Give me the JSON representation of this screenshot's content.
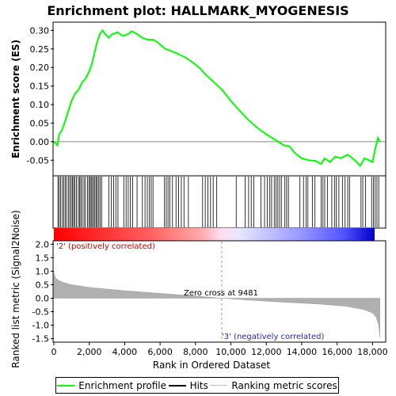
{
  "chart_data": {
    "title": "Enrichment plot: HALLMARK_MYOGENESIS",
    "type": "line",
    "x_label": "Rank in Ordered Dataset",
    "x_range": [
      0,
      18700
    ],
    "x_ticks": [
      "0",
      "2,000",
      "4,000",
      "6,000",
      "8,000",
      "10,000",
      "12,000",
      "14,000",
      "16,000",
      "18,000"
    ],
    "x_tick_values": [
      0,
      2000,
      4000,
      6000,
      8000,
      10000,
      12000,
      14000,
      16000,
      18000
    ],
    "enrichment": {
      "y_label": "Enrichment score (ES)",
      "y_range": [
        -0.09,
        0.32
      ],
      "y_ticks": [
        "0.30",
        "0.25",
        "0.20",
        "0.15",
        "0.10",
        "0.05",
        "0.00",
        "-0.05"
      ],
      "y_tick_values": [
        0.3,
        0.25,
        0.2,
        0.15,
        0.1,
        0.05,
        0.0,
        -0.05
      ],
      "series_name": "Enrichment profile",
      "color": "#00ff00",
      "points": [
        [
          0,
          0.0
        ],
        [
          200,
          -0.01
        ],
        [
          300,
          0.02
        ],
        [
          450,
          0.03
        ],
        [
          600,
          0.05
        ],
        [
          800,
          0.08
        ],
        [
          1000,
          0.11
        ],
        [
          1200,
          0.13
        ],
        [
          1400,
          0.14
        ],
        [
          1600,
          0.16
        ],
        [
          1800,
          0.17
        ],
        [
          2000,
          0.19
        ],
        [
          2150,
          0.21
        ],
        [
          2300,
          0.24
        ],
        [
          2450,
          0.27
        ],
        [
          2600,
          0.29
        ],
        [
          2750,
          0.3
        ],
        [
          2900,
          0.29
        ],
        [
          3100,
          0.28
        ],
        [
          3300,
          0.29
        ],
        [
          3600,
          0.295
        ],
        [
          3900,
          0.285
        ],
        [
          4200,
          0.29
        ],
        [
          4400,
          0.298
        ],
        [
          4700,
          0.29
        ],
        [
          5000,
          0.28
        ],
        [
          5300,
          0.275
        ],
        [
          5600,
          0.275
        ],
        [
          5800,
          0.27
        ],
        [
          6000,
          0.262
        ],
        [
          6300,
          0.25
        ],
        [
          6600,
          0.245
        ],
        [
          7000,
          0.237
        ],
        [
          7400,
          0.228
        ],
        [
          7800,
          0.215
        ],
        [
          8200,
          0.2
        ],
        [
          8600,
          0.18
        ],
        [
          9000,
          0.162
        ],
        [
          9500,
          0.14
        ],
        [
          10000,
          0.11
        ],
        [
          10500,
          0.083
        ],
        [
          11000,
          0.058
        ],
        [
          11500,
          0.037
        ],
        [
          12000,
          0.02
        ],
        [
          12500,
          0.005
        ],
        [
          13000,
          -0.01
        ],
        [
          13300,
          -0.012
        ],
        [
          13600,
          -0.03
        ],
        [
          14000,
          -0.045
        ],
        [
          14400,
          -0.05
        ],
        [
          14800,
          -0.052
        ],
        [
          15100,
          -0.06
        ],
        [
          15300,
          -0.045
        ],
        [
          15600,
          -0.055
        ],
        [
          15900,
          -0.04
        ],
        [
          16200,
          -0.045
        ],
        [
          16600,
          -0.035
        ],
        [
          17000,
          -0.05
        ],
        [
          17300,
          -0.065
        ],
        [
          17550,
          -0.045
        ],
        [
          17800,
          -0.05
        ],
        [
          18000,
          -0.055
        ],
        [
          18150,
          -0.02
        ],
        [
          18300,
          0.01
        ],
        [
          18420,
          0.0
        ]
      ]
    },
    "hits": {
      "label": "Hits",
      "positions": [
        230,
        300,
        380,
        480,
        560,
        640,
        720,
        820,
        900,
        980,
        1050,
        1120,
        1180,
        1270,
        1380,
        1450,
        1520,
        1600,
        1700,
        1780,
        1900,
        1980,
        2050,
        2110,
        2180,
        2250,
        2320,
        2390,
        2460,
        2540,
        2620,
        2700,
        3100,
        3250,
        3380,
        3500,
        3620,
        3950,
        4080,
        4200,
        4320,
        4450,
        4700,
        5000,
        5150,
        5280,
        5400,
        5500,
        5600,
        6250,
        6350,
        6450,
        6550,
        6700,
        6900,
        7050,
        7200,
        7350,
        7600,
        8400,
        8550,
        8700,
        8850,
        9000,
        9200,
        10300,
        10800,
        11000,
        11150,
        11300,
        11700,
        11900,
        12050,
        12200,
        12300,
        12450,
        12550,
        12650,
        12750,
        12850,
        13050,
        13150,
        13250,
        13900,
        14100,
        14250,
        14350,
        14600,
        14750,
        15100,
        15200,
        15300,
        15450,
        15700,
        15850,
        15950,
        16100,
        16300,
        16450,
        16600,
        16700,
        17350,
        17450,
        17600,
        17950,
        18050,
        18150,
        18250,
        18350
      ]
    },
    "metric": {
      "y_label": "Ranked list metric (Signal2Noise)",
      "y_range": [
        -1.6,
        2.1
      ],
      "y_ticks": [
        "2.0",
        "1.5",
        "1.0",
        "0.5",
        "0.0",
        "-0.5",
        "-1.0",
        "-1.5"
      ],
      "y_tick_values": [
        2.0,
        1.5,
        1.0,
        0.5,
        0.0,
        -0.5,
        -1.0,
        -1.5
      ],
      "series_name": "Ranking metric scores",
      "profile": [
        [
          0,
          0.95
        ],
        [
          100,
          0.75
        ],
        [
          300,
          0.65
        ],
        [
          600,
          0.57
        ],
        [
          1000,
          0.5
        ],
        [
          2000,
          0.4
        ],
        [
          4000,
          0.28
        ],
        [
          6000,
          0.18
        ],
        [
          8000,
          0.08
        ],
        [
          9481,
          0.0
        ],
        [
          11000,
          -0.07
        ],
        [
          13000,
          -0.15
        ],
        [
          15000,
          -0.22
        ],
        [
          16500,
          -0.3
        ],
        [
          17500,
          -0.42
        ],
        [
          18000,
          -0.55
        ],
        [
          18200,
          -0.7
        ],
        [
          18350,
          -1.0
        ],
        [
          18420,
          -1.45
        ]
      ],
      "zero_cross_label": "Zero cross at 9481",
      "zero_cross": 9481,
      "pos_label": "'2' (positively correlated)",
      "neg_label": "'3' (negatively correlated)"
    },
    "colorbar_stops": [
      "#ff0000",
      "#ff6a6a",
      "#ffb0b0",
      "#ffccf0",
      "#e0e0ff",
      "#9f9fff",
      "#5050ff",
      "#0000dd"
    ],
    "legend": [
      "Enrichment profile",
      "Hits",
      "Ranking metric scores"
    ]
  }
}
